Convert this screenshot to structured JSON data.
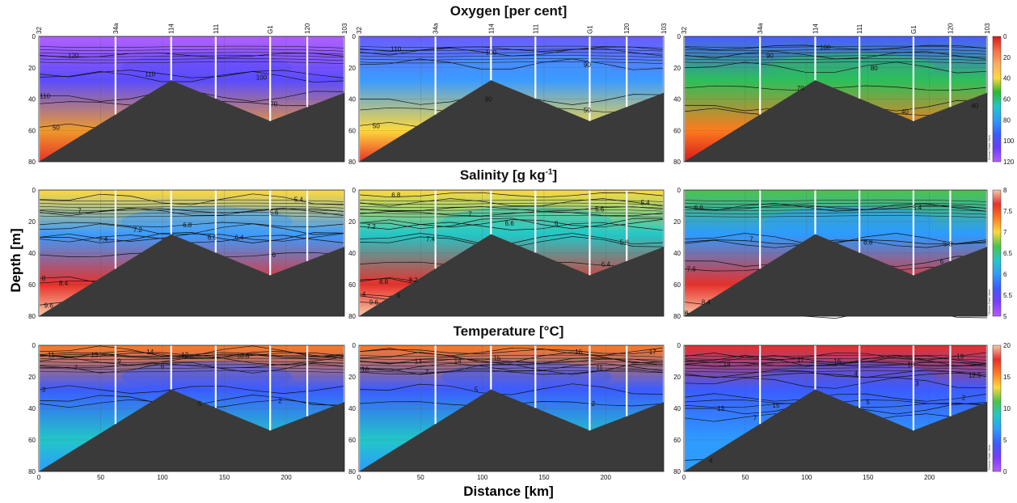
{
  "figure": {
    "ylabel": "Depth [m]",
    "xlabel": "Distance [km]",
    "watermark": "Ocean Data View"
  },
  "stations": [
    "32",
    "34a",
    "114",
    "111",
    "G1",
    "120",
    "103"
  ],
  "station_km": [
    0,
    62,
    107,
    143,
    187,
    217,
    247
  ],
  "colorbars": {
    "oxygen": {
      "ticks": [
        "0",
        "20",
        "40",
        "60",
        "80",
        "100",
        "120"
      ],
      "colors": [
        "#d7191c",
        "#f46d43",
        "#fdae61",
        "#ffd93b",
        "#2cb82c",
        "#22c7c7",
        "#2d9bff",
        "#3b5cff",
        "#6a3cff",
        "#b45cff"
      ]
    },
    "salinity": {
      "ticks": [
        "8",
        "7.5",
        "7",
        "6.5",
        "6",
        "5.5",
        "5"
      ],
      "colors": [
        "#f7c9a8",
        "#e8302a",
        "#ff7a1f",
        "#ffd93b",
        "#4bc44b",
        "#22c7c7",
        "#2d9bff",
        "#3b5cff",
        "#7a3cff",
        "#b45cff"
      ]
    },
    "temperature": {
      "ticks": [
        "20",
        "15",
        "10",
        "5",
        "0"
      ],
      "colors": [
        "#f7c9a8",
        "#e8302a",
        "#ff7a1f",
        "#ffd93b",
        "#4bc44b",
        "#22c7c7",
        "#2d9bff",
        "#3b5cff",
        "#7a3cff",
        "#b45cff"
      ]
    }
  },
  "chart_data": [
    {
      "type": "heatmap",
      "variable": "oxygen",
      "title": "Oxygen [per cent]",
      "xlabel": "Distance [km]",
      "ylabel": "Depth [m]",
      "xlim": [
        0,
        247
      ],
      "ylim": [
        80,
        0
      ],
      "x_ticks": [
        "0",
        "50",
        "100",
        "150",
        "200"
      ],
      "y_ticks": [
        "0",
        "20",
        "40",
        "60",
        "80"
      ],
      "panels": [
        {
          "surface_color": "#b060ff",
          "mid_color": "#5a4cff",
          "bottom_color": "#f09a2a",
          "deep_color": "#e8302a",
          "contours": [
            {
              "label": "120",
              "y": 12,
              "lx": 28
            },
            {
              "label": "110",
              "y": 24,
              "lx": 90
            },
            {
              "label": "100",
              "y": 26,
              "lx": 180
            },
            {
              "label": "70",
              "y": 43,
              "lx": 190
            },
            {
              "label": "50",
              "y": 58,
              "lx": 14
            },
            {
              "label": "110",
              "y": 38,
              "lx": 5
            }
          ]
        },
        {
          "surface_color": "#6a5cff",
          "mid_color": "#3b9bff",
          "bottom_color": "#ffd93b",
          "deep_color": "#e8302a",
          "contours": [
            {
              "label": "110",
              "y": 8,
              "lx": 30
            },
            {
              "label": "100",
              "y": 10,
              "lx": 107
            },
            {
              "label": "90",
              "y": 18,
              "lx": 185
            },
            {
              "label": "50",
              "y": 47,
              "lx": 185
            },
            {
              "label": "50",
              "y": 57,
              "lx": 14
            },
            {
              "label": "90",
              "y": 40,
              "lx": 105
            }
          ]
        },
        {
          "surface_color": "#4a5cff",
          "mid_color": "#2dbf5a",
          "bottom_color": "#ff7a1f",
          "deep_color": "#d7191c",
          "contours": [
            {
              "label": "100",
              "y": 7,
              "lx": 115
            },
            {
              "label": "90",
              "y": 12,
              "lx": 70
            },
            {
              "label": "80",
              "y": 20,
              "lx": 155
            },
            {
              "label": "70",
              "y": 33,
              "lx": 95
            },
            {
              "label": "40",
              "y": 48,
              "lx": 180
            },
            {
              "label": "40",
              "y": 44,
              "lx": 237
            }
          ]
        }
      ]
    },
    {
      "type": "heatmap",
      "variable": "salinity",
      "title": "Salinity [g kg-1]",
      "xlabel": "Distance [km]",
      "ylabel": "Depth [m]",
      "xlim": [
        0,
        247
      ],
      "ylim": [
        80,
        0
      ],
      "x_ticks": [
        "0",
        "50",
        "100",
        "150",
        "200"
      ],
      "y_ticks": [
        "0",
        "20",
        "40",
        "60",
        "80"
      ],
      "panels": [
        {
          "surface_color": "#ffd93b",
          "mid_color": "#3b9bff",
          "bottom_color": "#e8302a",
          "deep_color": "#f7c9a8",
          "contours": [
            {
              "label": "7",
              "y": 13,
              "lx": 33
            },
            {
              "label": "7.4",
              "y": 31,
              "lx": 52
            },
            {
              "label": "7.2",
              "y": 25,
              "lx": 80
            },
            {
              "label": "6.8",
              "y": 22,
              "lx": 120
            },
            {
              "label": "6.6",
              "y": 30,
              "lx": 140
            },
            {
              "label": "6.4",
              "y": 30,
              "lx": 162
            },
            {
              "label": "6",
              "y": 41,
              "lx": 190
            },
            {
              "label": "5.6",
              "y": 14,
              "lx": 190
            },
            {
              "label": "5.4",
              "y": 6,
              "lx": 210
            },
            {
              "label": "8.4",
              "y": 59,
              "lx": 20
            },
            {
              "label": "9.6",
              "y": 73,
              "lx": 8
            },
            {
              "label": "8",
              "y": 56,
              "lx": 4
            }
          ]
        },
        {
          "surface_color": "#ffd93b",
          "mid_color": "#22c7c7",
          "bottom_color": "#e8302a",
          "deep_color": "#f7c9a8",
          "contours": [
            {
              "label": "6.8",
              "y": 3,
              "lx": 30
            },
            {
              "label": "7.2",
              "y": 23,
              "lx": 10
            },
            {
              "label": "7.4",
              "y": 31,
              "lx": 58
            },
            {
              "label": "7",
              "y": 15,
              "lx": 90
            },
            {
              "label": "6.6",
              "y": 21,
              "lx": 122
            },
            {
              "label": "6",
              "y": 21,
              "lx": 160
            },
            {
              "label": "5.6",
              "y": 12,
              "lx": 195
            },
            {
              "label": "5.4",
              "y": 8,
              "lx": 232
            },
            {
              "label": "5.8",
              "y": 33,
              "lx": 215
            },
            {
              "label": "6.4",
              "y": 47,
              "lx": 200
            },
            {
              "label": "8.8",
              "y": 58,
              "lx": 20
            },
            {
              "label": "8.2",
              "y": 57,
              "lx": 44
            },
            {
              "label": "9.6",
              "y": 71,
              "lx": 12
            },
            {
              "label": "9",
              "y": 67,
              "lx": 32
            },
            {
              "label": "4",
              "y": 66,
              "lx": 4
            }
          ]
        },
        {
          "surface_color": "#4bc44b",
          "mid_color": "#2d9bff",
          "bottom_color": "#e8302a",
          "deep_color": "#f7c9a8",
          "contours": [
            {
              "label": "6.6",
              "y": 11,
              "lx": 12
            },
            {
              "label": "5.4",
              "y": 11,
              "lx": 190
            },
            {
              "label": "7",
              "y": 31,
              "lx": 55
            },
            {
              "label": "6.8",
              "y": 33,
              "lx": 150
            },
            {
              "label": "5.8",
              "y": 34,
              "lx": 215
            },
            {
              "label": "6",
              "y": 45,
              "lx": 210
            },
            {
              "label": "7.6",
              "y": 50,
              "lx": 6
            },
            {
              "label": "8.4",
              "y": 71,
              "lx": 18
            },
            {
              "label": "8",
              "y": 78,
              "lx": 2
            }
          ]
        }
      ]
    },
    {
      "type": "heatmap",
      "variable": "temperature",
      "title": "Temperature [°C]",
      "xlabel": "Distance [km]",
      "ylabel": "Depth [m]",
      "xlim": [
        0,
        247
      ],
      "ylim": [
        80,
        0
      ],
      "x_ticks": [
        "0",
        "50",
        "100",
        "150",
        "200"
      ],
      "y_ticks": [
        "0",
        "20",
        "40",
        "60",
        "80"
      ],
      "panels": [
        {
          "surface_color": "#ff7a1f",
          "mid_color": "#3b5cff",
          "bottom_color": "#22c7c7",
          "deep_color": "#2d9bff",
          "contours": [
            {
              "label": "11",
              "y": 6,
              "lx": 10
            },
            {
              "label": "13",
              "y": 6,
              "lx": 45
            },
            {
              "label": "14",
              "y": 4,
              "lx": 90
            },
            {
              "label": "12",
              "y": 6,
              "lx": 118
            },
            {
              "label": "9",
              "y": 10,
              "lx": 65
            },
            {
              "label": "7",
              "y": 14,
              "lx": 30
            },
            {
              "label": "6",
              "y": 13,
              "lx": 100
            },
            {
              "label": "5",
              "y": 37,
              "lx": 130
            },
            {
              "label": "2",
              "y": 35,
              "lx": 195
            },
            {
              "label": "10.8",
              "y": 7,
              "lx": 165
            },
            {
              "label": "3",
              "y": 28,
              "lx": 4
            }
          ]
        },
        {
          "surface_color": "#ff7a1f",
          "mid_color": "#3b5cff",
          "bottom_color": "#22c7c7",
          "deep_color": "#2d9bff",
          "contours": [
            {
              "label": "13",
              "y": 10,
              "lx": 48
            },
            {
              "label": "14",
              "y": 10,
              "lx": 80
            },
            {
              "label": "15",
              "y": 8,
              "lx": 112
            },
            {
              "label": "16",
              "y": 4,
              "lx": 178
            },
            {
              "label": "17",
              "y": 4,
              "lx": 238
            },
            {
              "label": "10",
              "y": 15,
              "lx": 5
            },
            {
              "label": "7",
              "y": 17,
              "lx": 55
            },
            {
              "label": "11",
              "y": 14,
              "lx": 195
            },
            {
              "label": "5",
              "y": 28,
              "lx": 95
            },
            {
              "label": "2",
              "y": 37,
              "lx": 190
            }
          ]
        },
        {
          "surface_color": "#e8302a",
          "mid_color": "#3b5cff",
          "bottom_color": "#2d9bff",
          "deep_color": "#2d9bff",
          "contours": [
            {
              "label": "18",
              "y": 12,
              "lx": 35
            },
            {
              "label": "17",
              "y": 9,
              "lx": 95
            },
            {
              "label": "16",
              "y": 10,
              "lx": 125
            },
            {
              "label": "18",
              "y": 12,
              "lx": 185
            },
            {
              "label": "19",
              "y": 7,
              "lx": 225
            },
            {
              "label": "13",
              "y": 40,
              "lx": 30
            },
            {
              "label": "15",
              "y": 38,
              "lx": 75
            },
            {
              "label": "7",
              "y": 46,
              "lx": 58
            },
            {
              "label": "3",
              "y": 24,
              "lx": 190
            },
            {
              "label": "5",
              "y": 36,
              "lx": 150
            },
            {
              "label": "2",
              "y": 33,
              "lx": 228
            },
            {
              "label": "4",
              "y": 73,
              "lx": 22
            },
            {
              "label": "12.5",
              "y": 19,
              "lx": 237
            },
            {
              "label": "4",
              "y": 18,
              "lx": 140
            }
          ]
        }
      ]
    }
  ],
  "bathymetry_km_depth": [
    [
      0,
      80
    ],
    [
      107,
      28
    ],
    [
      187,
      54
    ],
    [
      247,
      36
    ]
  ]
}
